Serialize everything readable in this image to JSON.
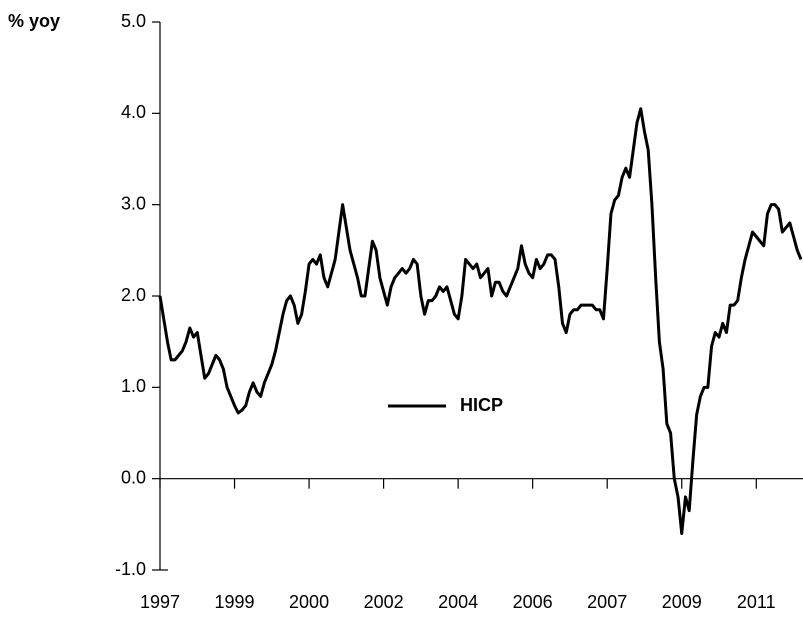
{
  "chart_data": {
    "type": "line",
    "y_label": "% yoy",
    "categories": [
      "1997",
      null,
      null,
      null,
      null,
      null,
      null,
      null,
      null,
      null,
      null,
      null,
      null,
      null,
      null,
      null,
      null,
      null,
      null,
      null,
      "1999",
      null,
      null,
      null,
      null,
      null,
      null,
      null,
      null,
      null,
      null,
      null,
      null,
      null,
      null,
      null,
      null,
      null,
      null,
      null,
      "2000",
      null,
      null,
      null,
      null,
      null,
      null,
      null,
      null,
      null,
      null,
      null,
      null,
      null,
      null,
      null,
      null,
      null,
      null,
      null,
      "2002",
      null,
      null,
      null,
      null,
      null,
      null,
      null,
      null,
      null,
      null,
      null,
      null,
      null,
      null,
      null,
      null,
      null,
      null,
      null,
      "2004",
      null,
      null,
      null,
      null,
      null,
      null,
      null,
      null,
      null,
      null,
      null,
      null,
      null,
      null,
      null,
      null,
      null,
      null,
      null,
      "2006",
      null,
      null,
      null,
      null,
      null,
      null,
      null,
      null,
      null,
      null,
      null,
      null,
      null,
      null,
      null,
      null,
      null,
      null,
      null,
      "2007",
      null,
      null,
      null,
      null,
      null,
      null,
      null,
      null,
      null,
      null,
      null,
      null,
      null,
      null,
      null,
      null,
      null,
      null,
      null,
      "2009",
      null,
      null,
      null,
      null,
      null,
      null,
      null,
      null,
      null,
      null,
      null,
      null,
      null,
      null,
      null,
      null,
      null,
      null,
      null,
      "2011",
      null,
      null,
      null,
      null,
      null,
      null,
      null,
      null,
      null,
      null,
      null,
      null
    ],
    "series": [
      {
        "name": "HICP",
        "color": "#000000",
        "values": [
          2.0,
          1.75,
          1.5,
          1.3,
          1.3,
          1.35,
          1.4,
          1.5,
          1.65,
          1.55,
          1.6,
          1.35,
          1.1,
          1.15,
          1.25,
          1.35,
          1.3,
          1.2,
          1.0,
          0.9,
          0.8,
          0.72,
          0.75,
          0.8,
          0.95,
          1.05,
          0.95,
          0.9,
          1.05,
          1.15,
          1.25,
          1.4,
          1.6,
          1.8,
          1.95,
          2.0,
          1.9,
          1.7,
          1.8,
          2.05,
          2.35,
          2.4,
          2.35,
          2.45,
          2.2,
          2.1,
          2.25,
          2.4,
          2.7,
          3.0,
          2.75,
          2.5,
          2.35,
          2.2,
          2.0,
          2.0,
          2.3,
          2.6,
          2.5,
          2.2,
          2.05,
          1.9,
          2.1,
          2.2,
          2.25,
          2.3,
          2.25,
          2.3,
          2.4,
          2.35,
          2.0,
          1.8,
          1.95,
          1.95,
          2.0,
          2.1,
          2.05,
          2.1,
          1.95,
          1.8,
          1.75,
          2.0,
          2.4,
          2.35,
          2.3,
          2.35,
          2.2,
          2.25,
          2.3,
          2.0,
          2.15,
          2.15,
          2.05,
          2.0,
          2.1,
          2.2,
          2.3,
          2.55,
          2.35,
          2.25,
          2.2,
          2.4,
          2.3,
          2.35,
          2.45,
          2.45,
          2.4,
          2.1,
          1.7,
          1.6,
          1.8,
          1.85,
          1.85,
          1.9,
          1.9,
          1.9,
          1.9,
          1.85,
          1.85,
          1.75,
          2.3,
          2.9,
          3.05,
          3.1,
          3.3,
          3.4,
          3.3,
          3.6,
          3.9,
          4.05,
          3.8,
          3.6,
          3.0,
          2.2,
          1.5,
          1.2,
          0.6,
          0.5,
          0.0,
          -0.2,
          -0.6,
          -0.2,
          -0.35,
          0.2,
          0.7,
          0.9,
          1.0,
          1.0,
          1.45,
          1.6,
          1.55,
          1.7,
          1.6,
          1.9,
          1.9,
          1.95,
          2.2,
          2.4,
          2.55,
          2.7,
          2.65,
          2.6,
          2.55,
          2.9,
          3.0,
          3.0,
          2.95,
          2.7,
          2.75,
          2.8,
          2.65,
          2.5,
          2.4
        ]
      }
    ],
    "ylim": [
      -1,
      5
    ],
    "yticks": [
      {
        "value": -1,
        "label": "-1.0"
      },
      {
        "value": 0,
        "label": "0.0"
      },
      {
        "value": 1,
        "label": "1.0"
      },
      {
        "value": 2,
        "label": "2.0"
      },
      {
        "value": 3,
        "label": "3.0"
      },
      {
        "value": 4,
        "label": "4.0"
      },
      {
        "value": 5,
        "label": "5.0"
      }
    ],
    "grid": false,
    "legend_position": "center"
  }
}
